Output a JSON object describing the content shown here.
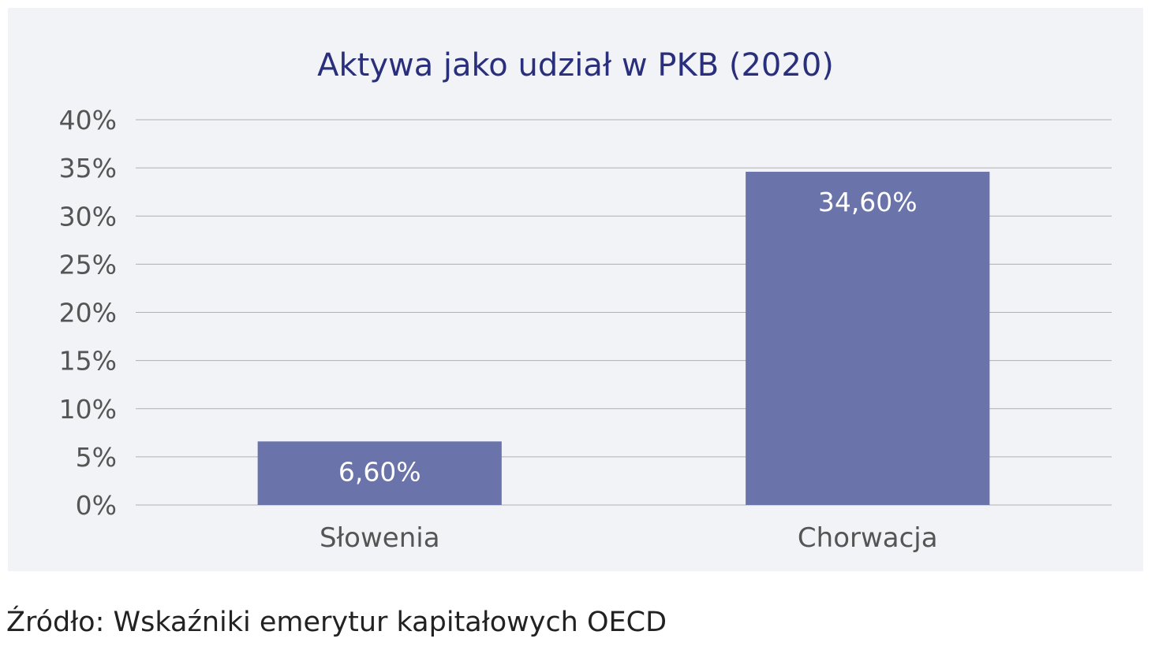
{
  "chart_data": {
    "type": "bar",
    "title": "Aktywa jako udział w PKB (2020)",
    "categories": [
      "Słowenia",
      "Chorwacja"
    ],
    "values": [
      6.6,
      34.6
    ],
    "data_labels": [
      "6,60%",
      "34,60%"
    ],
    "y_ticks": [
      0,
      5,
      10,
      15,
      20,
      25,
      30,
      35,
      40
    ],
    "y_tick_labels": [
      "0%",
      "5%",
      "10%",
      "15%",
      "20%",
      "25%",
      "30%",
      "35%",
      "40%"
    ],
    "ylim": [
      0,
      40
    ],
    "xlabel": "",
    "ylabel": "",
    "grid": true,
    "legend": "none",
    "colors": {
      "bar": "#6b74aa",
      "title": "#2a2f7c",
      "axis_text": "#555555",
      "grid": "#b0b0b0"
    }
  },
  "source": "Źródło: Wskaźniki emerytur kapitałowych OECD"
}
